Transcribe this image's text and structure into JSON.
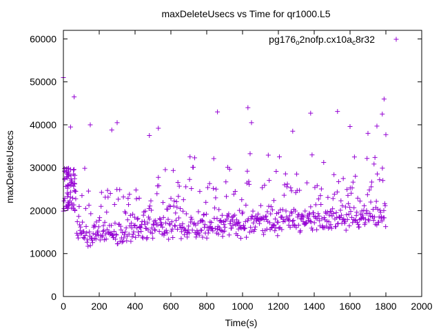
{
  "chart_data": {
    "type": "scatter",
    "title": "maxDeleteUsecs vs Time for qr1000.L5",
    "xlabel": "Time(s)",
    "ylabel": "maxDeleteUsecs",
    "xlim": [
      0,
      2000
    ],
    "ylim": [
      0,
      62000
    ],
    "xticks": [
      0,
      200,
      400,
      600,
      800,
      1000,
      1200,
      1400,
      1600,
      1800,
      2000
    ],
    "yticks": [
      0,
      10000,
      20000,
      30000,
      40000,
      50000,
      60000
    ],
    "grid": false,
    "legend_position": "top-right",
    "marker": "+",
    "series": [
      {
        "name": "pg176o2nofp.cx10ac8r32",
        "legend_main": "pg176",
        "legend_sub1": "o",
        "legend_mid": "2nofp.cx10a",
        "legend_sub2": "c",
        "legend_end": "8r32",
        "color": "#9400d3",
        "x_range": [
          0,
          1800
        ],
        "baseline_start": 13000,
        "baseline_end": 17500,
        "spread_low": 2000,
        "outlier_band_max": 30000,
        "outliers": [
          [
            0,
            51000
          ],
          [
            40,
            39500
          ],
          [
            60,
            46500
          ],
          [
            150,
            40000
          ],
          [
            270,
            38800
          ],
          [
            300,
            40500
          ],
          [
            480,
            37500
          ],
          [
            530,
            39200
          ],
          [
            860,
            43000
          ],
          [
            1030,
            44000
          ],
          [
            1050,
            40500
          ],
          [
            1280,
            38500
          ],
          [
            1380,
            42700
          ],
          [
            1530,
            43100
          ],
          [
            1600,
            39600
          ],
          [
            1700,
            38000
          ],
          [
            1750,
            39700
          ],
          [
            1780,
            42500
          ],
          [
            1790,
            46000
          ],
          [
            1800,
            37700
          ]
        ],
        "startup_cluster": {
          "x_max": 70,
          "y_min": 19000,
          "y_max": 30000
        }
      }
    ]
  }
}
